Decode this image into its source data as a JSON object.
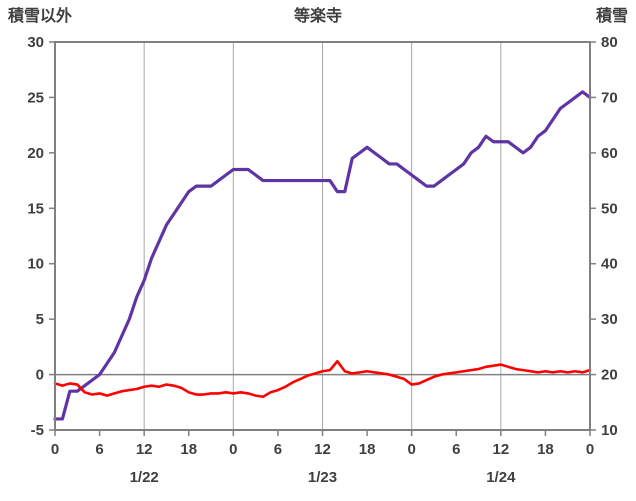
{
  "chart_data": {
    "type": "line",
    "title": "等楽寺",
    "colors": {
      "frame": "#808080",
      "grid": "#A6A6A6",
      "zero_line": "#808080",
      "text": "#3F3F3F",
      "snow_depth_line": "#5F35A5",
      "other_line": "#FF0000"
    },
    "left_axis": {
      "label": "積雪以外",
      "min": -5,
      "max": 30,
      "ticks": [
        30,
        25,
        20,
        15,
        10,
        5,
        0,
        -5
      ]
    },
    "right_axis": {
      "label": "積雪",
      "min": 10,
      "max": 80,
      "ticks": [
        80,
        70,
        60,
        50,
        40,
        30,
        20,
        10
      ]
    },
    "x_axis": {
      "hours_total": 72,
      "tick_interval": 6,
      "tick_labels": [
        "0",
        "6",
        "12",
        "18",
        "0",
        "6",
        "12",
        "18",
        "0",
        "6",
        "12",
        "18",
        "0"
      ],
      "gridline_hours": [
        12,
        24,
        36,
        48,
        60
      ],
      "date_labels": [
        {
          "label": "1/22",
          "hour": 12
        },
        {
          "label": "1/23",
          "hour": 36
        },
        {
          "label": "1/24",
          "hour": 60
        }
      ]
    },
    "series": [
      {
        "key": "snow-depth",
        "name": "積雪",
        "axis": "right",
        "color": "#5F35A5",
        "width": 3.2,
        "values": [
          12,
          12,
          17,
          17,
          18,
          19,
          20,
          22,
          24,
          27,
          30,
          34,
          37,
          41,
          44,
          47,
          49,
          51,
          53,
          54,
          54,
          54,
          55,
          56,
          57,
          57,
          57,
          56,
          55,
          55,
          55,
          55,
          55,
          55,
          55,
          55,
          55,
          55,
          53,
          53,
          59,
          60,
          61,
          60,
          59,
          58,
          58,
          57,
          56,
          55,
          54,
          54,
          55,
          56,
          57,
          58,
          60,
          61,
          63,
          62,
          62,
          62,
          61,
          60,
          61,
          63,
          64,
          66,
          68,
          69,
          70,
          71,
          70
        ]
      },
      {
        "key": "other-than-snow",
        "name": "積雪以外",
        "axis": "left",
        "color": "#FF0000",
        "width": 2.6,
        "values": [
          -0.8,
          -1.0,
          -0.8,
          -0.9,
          -1.6,
          -1.8,
          -1.7,
          -1.9,
          -1.7,
          -1.5,
          -1.4,
          -1.3,
          -1.1,
          -1.0,
          -1.1,
          -0.9,
          -1.0,
          -1.2,
          -1.6,
          -1.8,
          -1.8,
          -1.7,
          -1.7,
          -1.6,
          -1.7,
          -1.6,
          -1.7,
          -1.9,
          -2.0,
          -1.6,
          -1.4,
          -1.1,
          -0.7,
          -0.4,
          -0.1,
          0.1,
          0.3,
          0.4,
          1.2,
          0.3,
          0.1,
          0.2,
          0.3,
          0.2,
          0.1,
          0.0,
          -0.2,
          -0.4,
          -0.9,
          -0.8,
          -0.5,
          -0.2,
          0.0,
          0.1,
          0.2,
          0.3,
          0.4,
          0.5,
          0.7,
          0.8,
          0.9,
          0.7,
          0.5,
          0.4,
          0.3,
          0.2,
          0.3,
          0.2,
          0.3,
          0.2,
          0.3,
          0.2,
          0.4
        ]
      }
    ]
  }
}
